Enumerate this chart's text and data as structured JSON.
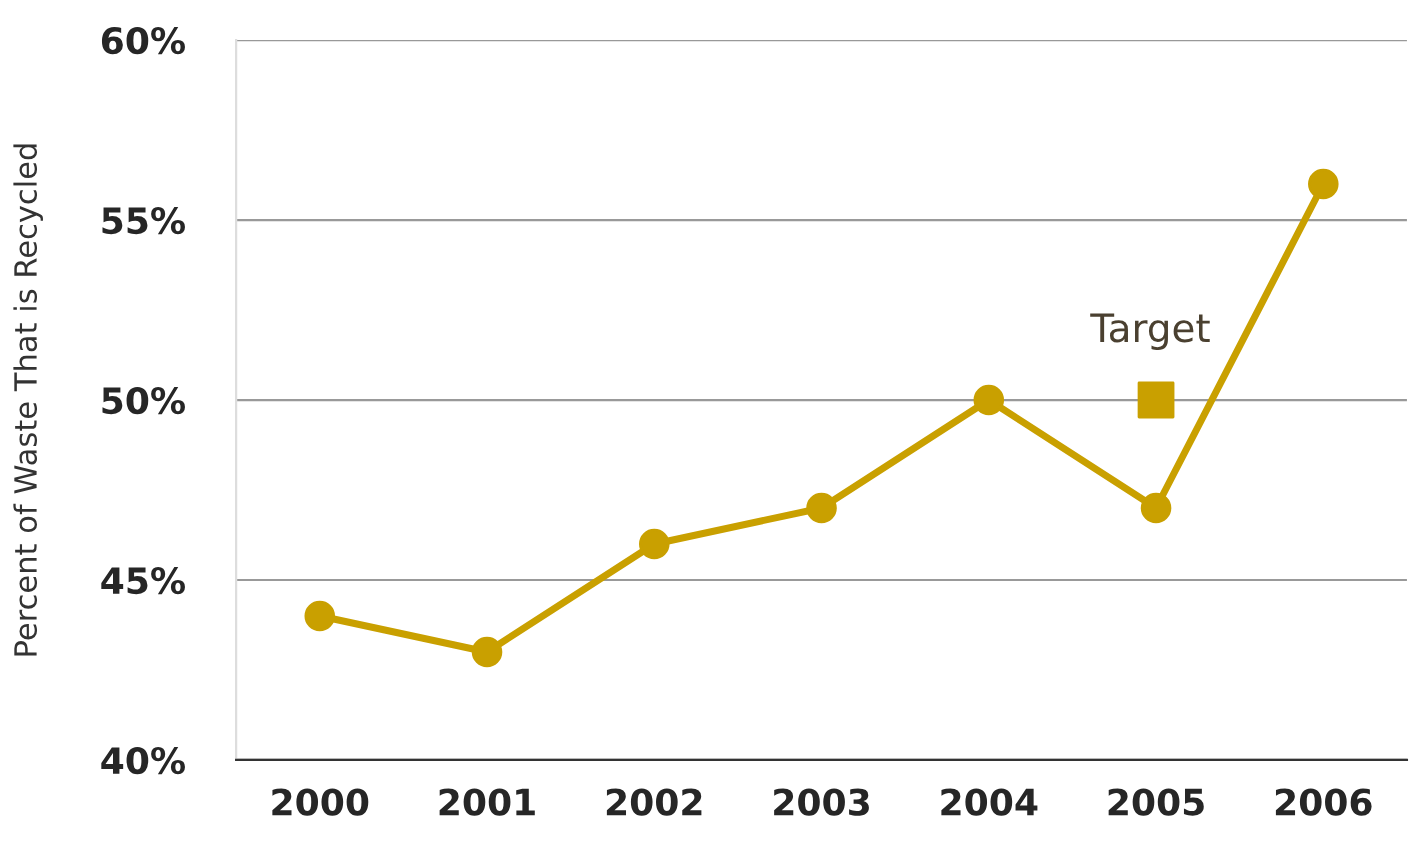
{
  "chart_data": {
    "type": "line",
    "ylabel": "Percent of Waste That is Recycled",
    "categories": [
      "2000",
      "2001",
      "2002",
      "2003",
      "2004",
      "2005",
      "2006"
    ],
    "series": [
      {
        "color": "#c9a000",
        "values": [
          44,
          43,
          46,
          47,
          50,
          47,
          56
        ],
        "marker": "circle",
        "line_style": "solid"
      },
      {
        "type": "scatter",
        "name": "Target",
        "color": "#c9a000",
        "values": [
          null,
          null,
          null,
          null,
          null,
          50,
          null
        ],
        "marker": "square"
      }
    ],
    "ylim": [
      40,
      60
    ],
    "yticks": [
      {
        "value": 40,
        "label": "40%"
      },
      {
        "value": 45,
        "label": "45%"
      },
      {
        "value": 50,
        "label": "50%"
      },
      {
        "value": 55,
        "label": "55%"
      },
      {
        "value": 60,
        "label": "60%"
      }
    ],
    "grid": "y",
    "legend": false
  }
}
